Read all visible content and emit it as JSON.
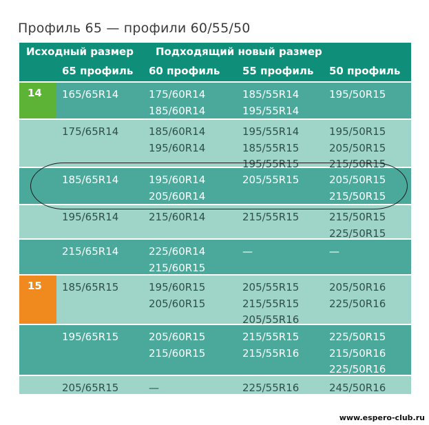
{
  "title": "Профиль 65 — профили 60/55/50",
  "header": {
    "original_size": "Исходный размер",
    "new_size": "Подходящий новый размер",
    "col_65": "65 профиль",
    "col_60": "60 профиль",
    "col_55": "55 профиль",
    "col_50": "50 профиль"
  },
  "colors": {
    "header": "#0f8f7a",
    "row_dark": "#4aa99b",
    "row_light": "#9fd4c9",
    "badge_14": "#5cb336",
    "badge_15": "#f08a1e"
  },
  "rows": [
    {
      "badge": "14",
      "orig": "165/65R14",
      "p60": [
        "175/60R14",
        "185/60R14"
      ],
      "p55": [
        "185/55R14",
        "195/55R14"
      ],
      "p50": [
        "195/50R15"
      ]
    },
    {
      "badge": "",
      "orig": "175/65R14",
      "p60": [
        "185/60R14",
        "195/60R14"
      ],
      "p55": [
        "195/55R14",
        "185/55R15",
        "195/55R15"
      ],
      "p50": [
        "195/50R15",
        "205/50R15",
        "215/50R15"
      ]
    },
    {
      "badge": "",
      "orig": "185/65R14",
      "p60": [
        "195/60R14",
        "205/60R14"
      ],
      "p55": [
        "205/55R15"
      ],
      "p50": [
        "205/50R15",
        "215/50R15"
      ]
    },
    {
      "badge": "",
      "orig": "195/65R14",
      "p60": [
        "215/60R14"
      ],
      "p55": [
        "215/55R15"
      ],
      "p50": [
        "215/50R15",
        "225/50R15"
      ]
    },
    {
      "badge": "",
      "orig": "215/65R14",
      "p60": [
        "225/60R14",
        "215/60R15"
      ],
      "p55": [
        "—"
      ],
      "p50": [
        "—"
      ]
    },
    {
      "badge": "15",
      "orig": "185/65R15",
      "p60": [
        "195/60R15",
        "205/60R15"
      ],
      "p55": [
        "205/55R15",
        "215/55R15",
        "205/55R16"
      ],
      "p50": [
        "205/50R16",
        "225/50R16"
      ]
    },
    {
      "badge": "",
      "orig": "195/65R15",
      "p60": [
        "205/60R15",
        "215/60R15"
      ],
      "p55": [
        "215/55R15",
        "215/55R16"
      ],
      "p50": [
        "225/50R15",
        "215/50R16",
        "225/50R16"
      ]
    },
    {
      "badge": "",
      "orig": "205/65R15",
      "p60": [
        "—"
      ],
      "p55": [
        "225/55R16"
      ],
      "p50": [
        "245/50R16"
      ]
    }
  ],
  "watermark": "www.espero-club.ru"
}
